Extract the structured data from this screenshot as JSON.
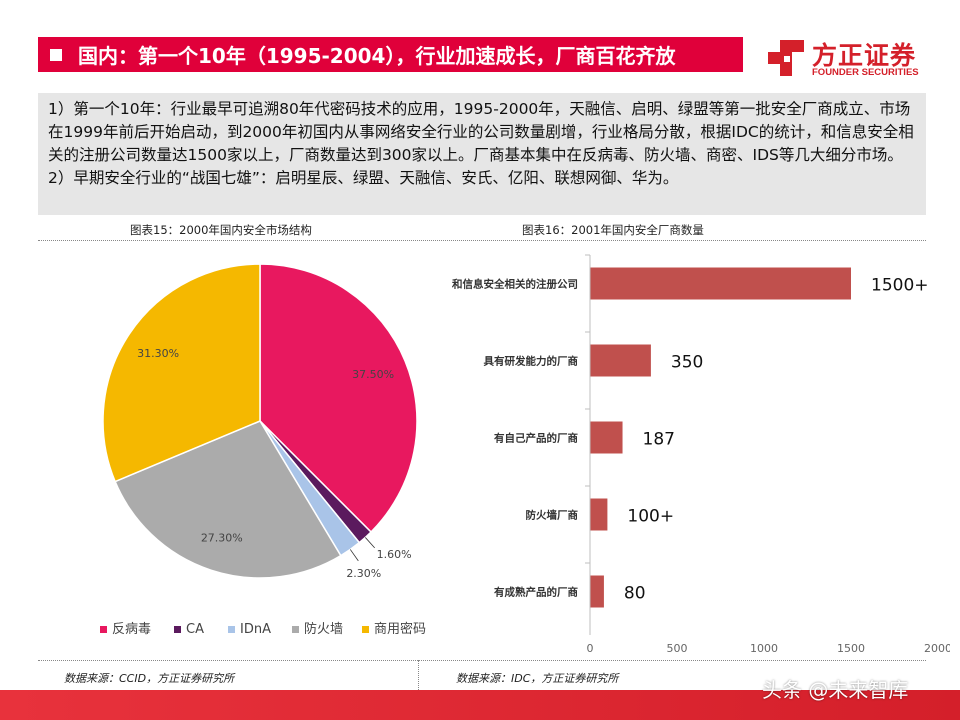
{
  "header": {
    "title": "国内：第一个10年（1995-2004），行业加速成长，厂商百花齐放"
  },
  "logo": {
    "name_cn": "方正证券",
    "name_en": "FOUNDER SECURITIES"
  },
  "summary": {
    "paragraphs": [
      "1）第一个10年：行业最早可追溯80年代密码技术的应用，1995-2000年，天融信、启明、绿盟等第一批安全厂商成立、市场在1999年前后开始启动，到2000年初国内从事网络安全行业的公司数量剧增，行业格局分散，根据IDC的统计，和信息安全相关的注册公司数量达1500家以上，厂商数量达到300家以上。厂商基本集中在反病毒、防火墙、商密、IDS等几大细分市场。",
      "2）早期安全行业的“战国七雄”：启明星辰、绿盟、天融信、安氏、亿阳、联想网御、华为。"
    ]
  },
  "charts": {
    "left_caption": "图表15：2000年国内安全市场结构",
    "right_caption": "图表16：2001年国内安全厂商数量",
    "left_source": "数据来源：CCID，方正证券研究所",
    "right_source": "数据来源：IDC，方正证券研究所"
  },
  "chart_data": [
    {
      "type": "pie",
      "categories": [
        "反病毒",
        "CA",
        "IDnA",
        "防火墙",
        "商用密码"
      ],
      "values": [
        37.5,
        1.6,
        2.3,
        27.3,
        31.3
      ],
      "labels": [
        "37.50%",
        "1.60%",
        "2.30%",
        "27.30%",
        "31.30%"
      ],
      "colors": [
        "#e8185f",
        "#5b1a5e",
        "#a9c4e8",
        "#ababab",
        "#f5b800"
      ],
      "legend_position": "bottom"
    },
    {
      "type": "bar",
      "orientation": "horizontal",
      "categories": [
        "和信息安全相关的注册公司",
        "具有研发能力的厂商",
        "有自己产品的厂商",
        "防火墙厂商",
        "有成熟产品的厂商"
      ],
      "values": [
        1500,
        350,
        187,
        100,
        80
      ],
      "labels": [
        "1500+",
        "350",
        "187",
        "100+",
        "80"
      ],
      "xlim": [
        0,
        2000
      ],
      "xticks": [
        0,
        500,
        1000,
        1500,
        2000
      ],
      "color": "#c0504d",
      "grid": false
    }
  ],
  "watermark": "头条 @未来智库"
}
